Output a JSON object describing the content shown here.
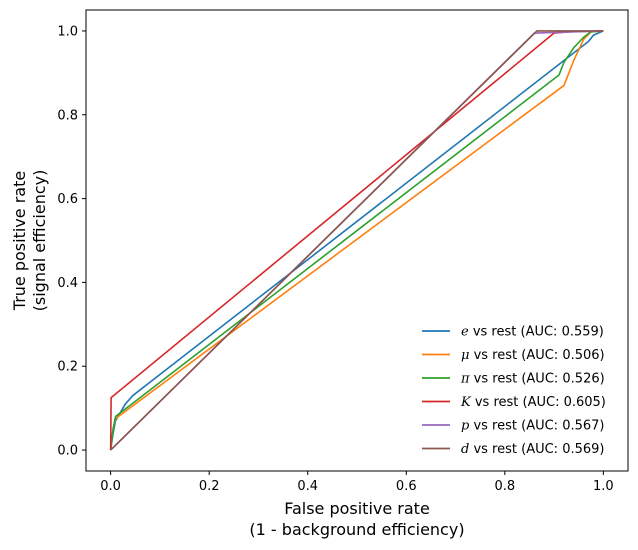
{
  "chart_data": {
    "type": "line",
    "xlabel": [
      "False positive rate",
      "(1 - background efficiency)"
    ],
    "ylabel": [
      "True positive rate",
      "(signal efficiency)"
    ],
    "xlim": [
      -0.05,
      1.05
    ],
    "ylim": [
      -0.05,
      1.05
    ],
    "xticks": [
      0.0,
      0.2,
      0.4,
      0.6,
      0.8,
      1.0
    ],
    "yticks": [
      0.0,
      0.2,
      0.4,
      0.6,
      0.8,
      1.0
    ],
    "xtick_labels": [
      "0.0",
      "0.2",
      "0.4",
      "0.6",
      "0.8",
      "1.0"
    ],
    "ytick_labels": [
      "0.0",
      "0.2",
      "0.4",
      "0.6",
      "0.8",
      "1.0"
    ],
    "grid": false,
    "legend_position": "lower-right",
    "series": [
      {
        "symbol": "e",
        "label": " vs rest (AUC: 0.559)",
        "color": "#1f77b4",
        "points": [
          [
            0,
            0
          ],
          [
            0.005,
            0.04
          ],
          [
            0.01,
            0.07
          ],
          [
            0.02,
            0.09
          ],
          [
            0.03,
            0.11
          ],
          [
            0.045,
            0.13
          ],
          [
            0.97,
            0.975
          ],
          [
            0.98,
            0.99
          ],
          [
            1.0,
            1.0
          ]
        ]
      },
      {
        "symbol": "μ",
        "label": " vs rest (AUC: 0.506)",
        "color": "#ff7f0e",
        "points": [
          [
            0,
            0
          ],
          [
            0.005,
            0.05
          ],
          [
            0.01,
            0.075
          ],
          [
            0.92,
            0.87
          ],
          [
            0.94,
            0.93
          ],
          [
            0.96,
            0.98
          ],
          [
            0.975,
            0.998
          ],
          [
            1.0,
            1.0
          ]
        ]
      },
      {
        "symbol": "π",
        "label": " vs rest (AUC: 0.526)",
        "color": "#2ca02c",
        "points": [
          [
            0,
            0
          ],
          [
            0.005,
            0.05
          ],
          [
            0.01,
            0.08
          ],
          [
            0.91,
            0.895
          ],
          [
            0.92,
            0.925
          ],
          [
            0.94,
            0.96
          ],
          [
            0.96,
            0.985
          ],
          [
            0.975,
            0.998
          ],
          [
            1.0,
            1.0
          ]
        ]
      },
      {
        "symbol": "K",
        "label": " vs rest (AUC: 0.605)",
        "color": "#d62728",
        "points": [
          [
            0,
            0
          ],
          [
            0.001,
            0.125
          ],
          [
            0.9,
            0.995
          ],
          [
            0.93,
            0.998
          ],
          [
            1.0,
            1.0
          ]
        ]
      },
      {
        "symbol": "p",
        "label": " vs rest (AUC: 0.567)",
        "color": "#9467bd",
        "points": [
          [
            0,
            0
          ],
          [
            0.86,
            0.995
          ],
          [
            1.0,
            1.0
          ]
        ]
      },
      {
        "symbol": "d",
        "label": " vs rest (AUC: 0.569)",
        "color": "#8c564b",
        "points": [
          [
            0,
            0
          ],
          [
            0.865,
            1.0
          ],
          [
            1.0,
            1.0
          ]
        ]
      }
    ]
  }
}
